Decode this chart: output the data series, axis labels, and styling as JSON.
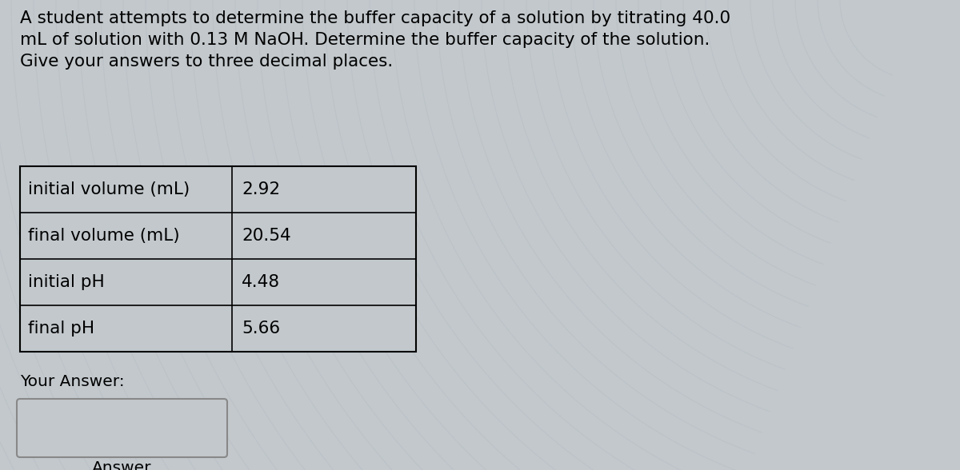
{
  "title_text": "A student attempts to determine the buffer capacity of a solution by titrating 40.0\nmL of solution with 0.13 M NaOH. Determine the buffer capacity of the solution.\nGive your answers to three decimal places.",
  "table_rows": [
    [
      "initial volume (mL)",
      "2.92"
    ],
    [
      "final volume (mL)",
      "20.54"
    ],
    [
      "initial pH",
      "4.48"
    ],
    [
      "final pH",
      "5.66"
    ]
  ],
  "your_answer_label": "Your Answer:",
  "answer_label": "Answer",
  "bg_color": "#c2c8cc",
  "table_cell_bg": "#c2c8cc",
  "text_color": "#000000",
  "title_fontsize": 15.5,
  "table_fontsize": 15.5,
  "label_fontsize": 14.5,
  "fig_width": 12.0,
  "fig_height": 5.88
}
